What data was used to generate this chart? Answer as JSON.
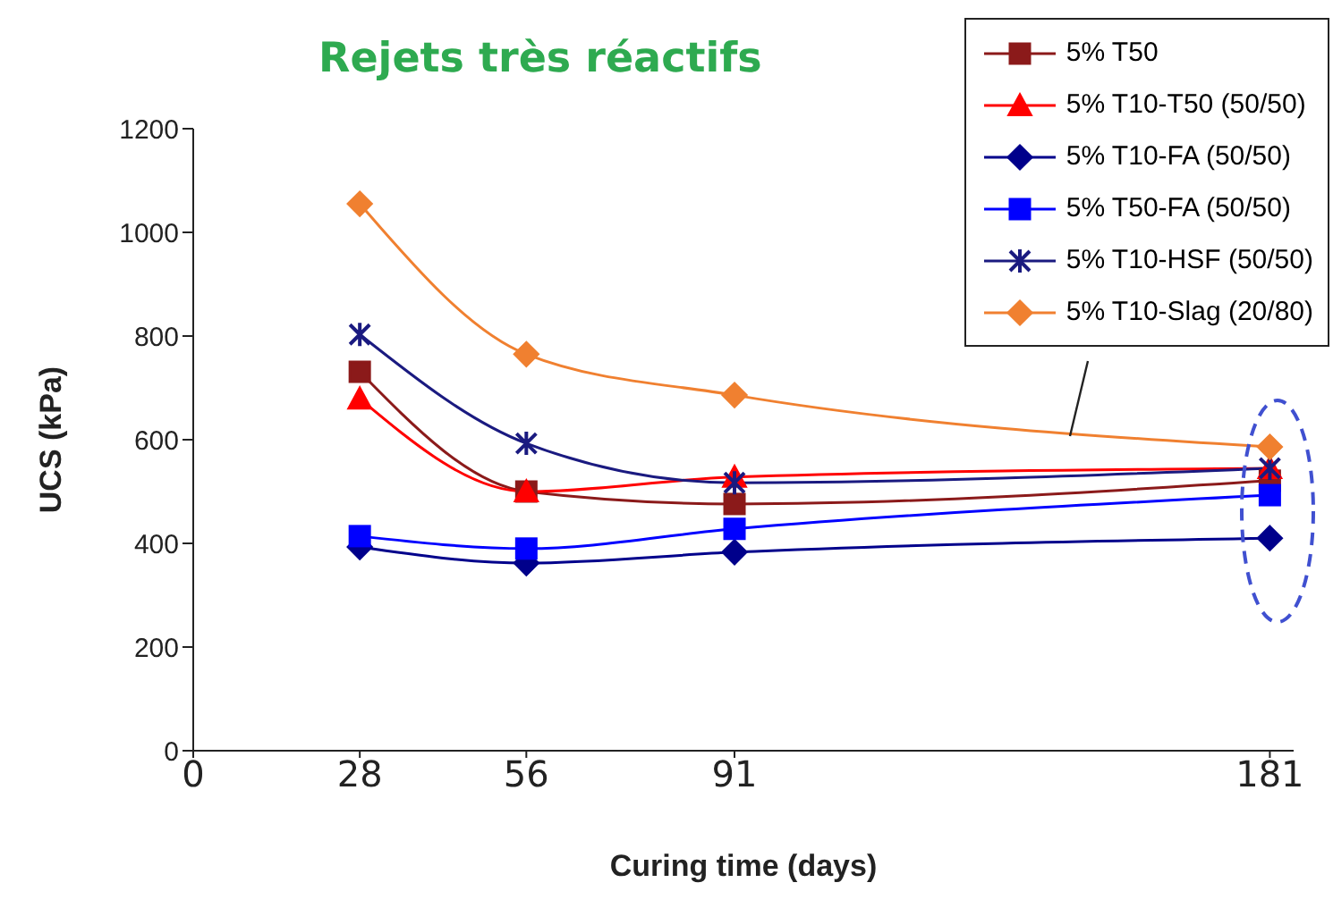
{
  "chart_data": {
    "type": "line",
    "title": "Rejets très réactifs",
    "xlabel": "Curing time (days)",
    "ylabel": "UCS (kPa)",
    "x": [
      28,
      56,
      91,
      181
    ],
    "series": [
      {
        "name": "5% T50",
        "color": "#8b1a1a",
        "marker": "square",
        "values": [
          731,
          500,
          476,
          521
        ]
      },
      {
        "name": "5% T10-T50 (50/50)",
        "color": "#ff0000",
        "marker": "triangle",
        "values": [
          679,
          500,
          528,
          545
        ]
      },
      {
        "name": "5% T10-FA (50/50)",
        "color": "#00008b",
        "marker": "diamond",
        "values": [
          393,
          362,
          383,
          410
        ]
      },
      {
        "name": "5% T50-FA (50/50)",
        "color": "#0000ff",
        "marker": "square",
        "values": [
          414,
          390,
          428,
          493
        ]
      },
      {
        "name": "5% T10-HSF (50/50)",
        "color": "#1a1a80",
        "marker": "cross",
        "values": [
          803,
          593,
          517,
          545
        ]
      },
      {
        "name": "5% T10-Slag (20/80)",
        "color": "#f08030",
        "marker": "diamond",
        "values": [
          1055,
          765,
          686,
          586
        ]
      }
    ],
    "xlim": [
      0,
      185
    ],
    "xticks": [
      0,
      28,
      56,
      91,
      181
    ],
    "ylim": [
      0,
      1200
    ],
    "yticks": [
      0,
      200,
      400,
      600,
      800,
      1000,
      1200
    ],
    "grid": false,
    "legend": "top right",
    "line_style": "solid"
  }
}
